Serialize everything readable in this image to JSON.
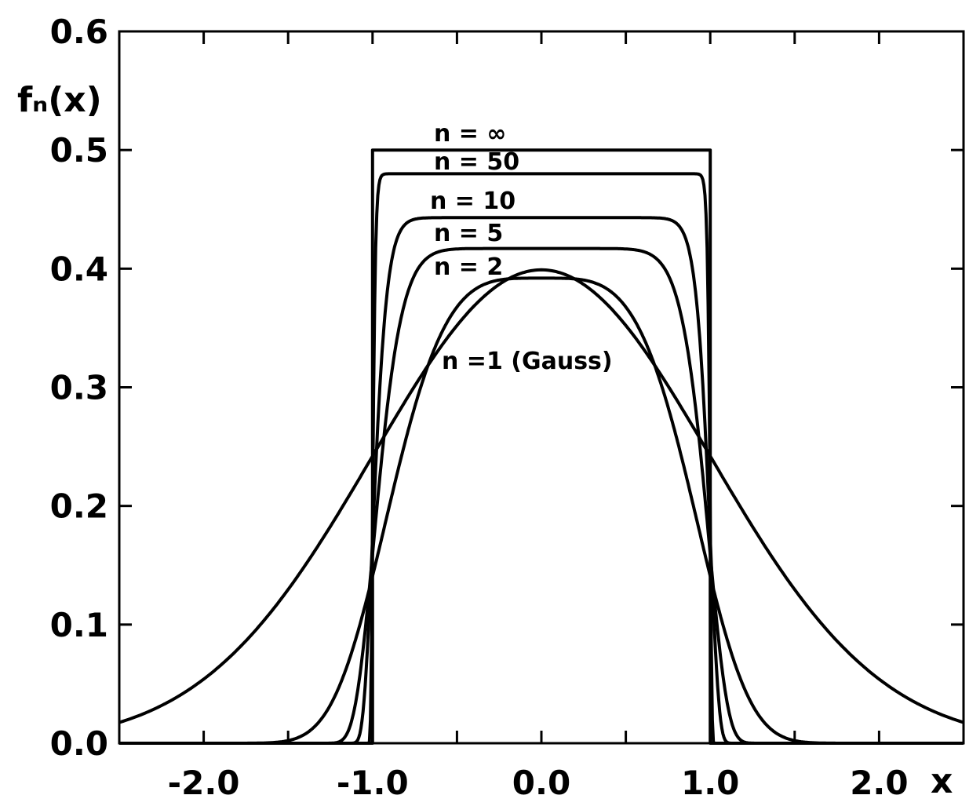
{
  "chart_data": {
    "type": "line",
    "title": "",
    "xlabel": "x",
    "ylabel": "fₙ(x)",
    "xlim": [
      -2.5,
      2.5
    ],
    "ylim": [
      0.0,
      0.6
    ],
    "x_ticks_labeled": [
      -2.0,
      -1.0,
      0.0,
      1.0,
      2.0
    ],
    "x_tick_labels": [
      "-2.0",
      "-1.0",
      "0.0",
      "1.0",
      "2.0"
    ],
    "x_minor_step": 0.5,
    "y_ticks": [
      0.0,
      0.1,
      0.2,
      0.3,
      0.4,
      0.5,
      0.6
    ],
    "y_tick_labels": [
      "0.0",
      "0.1",
      "0.2",
      "0.3",
      "0.4",
      "0.5",
      "0.6"
    ],
    "grid": false,
    "series": [
      {
        "name": "n = ∞",
        "n": 1000,
        "peak": 0.5,
        "x": [
          -2.5,
          -1.0,
          -1.0,
          1.0,
          1.0,
          2.5
        ],
        "y": [
          0.0,
          0.0,
          0.5,
          0.5,
          0.0,
          0.0
        ]
      },
      {
        "name": "n = 50",
        "n": 50,
        "peak": 0.48,
        "x": [
          -2.5,
          -1.05,
          -1.02,
          -1.0,
          -0.98,
          -0.95,
          0.95,
          0.98,
          1.0,
          1.02,
          1.05,
          2.5
        ],
        "y": [
          0.0,
          0.0,
          0.08,
          0.2,
          0.4,
          0.48,
          0.48,
          0.4,
          0.2,
          0.08,
          0.0,
          0.0
        ]
      },
      {
        "name": "n = 10",
        "n": 10,
        "peak": 0.443,
        "x": [
          -2.5,
          -1.14,
          -1.08,
          -1.0,
          -0.95,
          -0.9,
          0.9,
          0.95,
          1.0,
          1.08,
          1.14,
          2.5
        ],
        "y": [
          0.0,
          0.0,
          0.15,
          0.35,
          0.43,
          0.443,
          0.443,
          0.43,
          0.35,
          0.15,
          0.0,
          0.0
        ]
      },
      {
        "name": "n = 5",
        "n": 5,
        "peak": 0.417,
        "x": [
          -2.5,
          -1.3,
          -1.2,
          -1.1,
          -1.0,
          -0.9,
          -0.8,
          0.8,
          0.9,
          1.0,
          1.1,
          1.2,
          1.3,
          2.5
        ],
        "y": [
          0.0,
          0.0,
          0.08,
          0.22,
          0.34,
          0.4,
          0.417,
          0.417,
          0.4,
          0.34,
          0.22,
          0.08,
          0.0,
          0.0
        ]
      },
      {
        "name": "n = 2",
        "n": 2,
        "peak": 0.392,
        "x": [
          -2.5,
          -1.5,
          -1.3,
          -1.15,
          -1.0,
          -0.8,
          -0.6,
          -0.4,
          0.0,
          0.4,
          0.6,
          0.8,
          1.0,
          1.15,
          1.3,
          1.5,
          2.5
        ],
        "y": [
          0.0,
          0.0,
          0.08,
          0.17,
          0.26,
          0.33,
          0.37,
          0.388,
          0.392,
          0.388,
          0.37,
          0.33,
          0.26,
          0.17,
          0.08,
          0.0,
          0.0
        ]
      },
      {
        "name": "n =1 (Gauss)",
        "n": 1,
        "peak": 0.399,
        "x": [
          -2.5,
          -2.25,
          -2.0,
          -1.75,
          -1.5,
          -1.25,
          -1.0,
          -0.75,
          -0.5,
          -0.25,
          0.0,
          0.25,
          0.5,
          0.75,
          1.0,
          1.25,
          1.5,
          1.75,
          2.0,
          2.25,
          2.5
        ],
        "y": [
          0.018,
          0.032,
          0.054,
          0.086,
          0.13,
          0.183,
          0.242,
          0.301,
          0.352,
          0.387,
          0.399,
          0.387,
          0.352,
          0.301,
          0.242,
          0.183,
          0.13,
          0.086,
          0.054,
          0.032,
          0.018
        ]
      }
    ]
  }
}
